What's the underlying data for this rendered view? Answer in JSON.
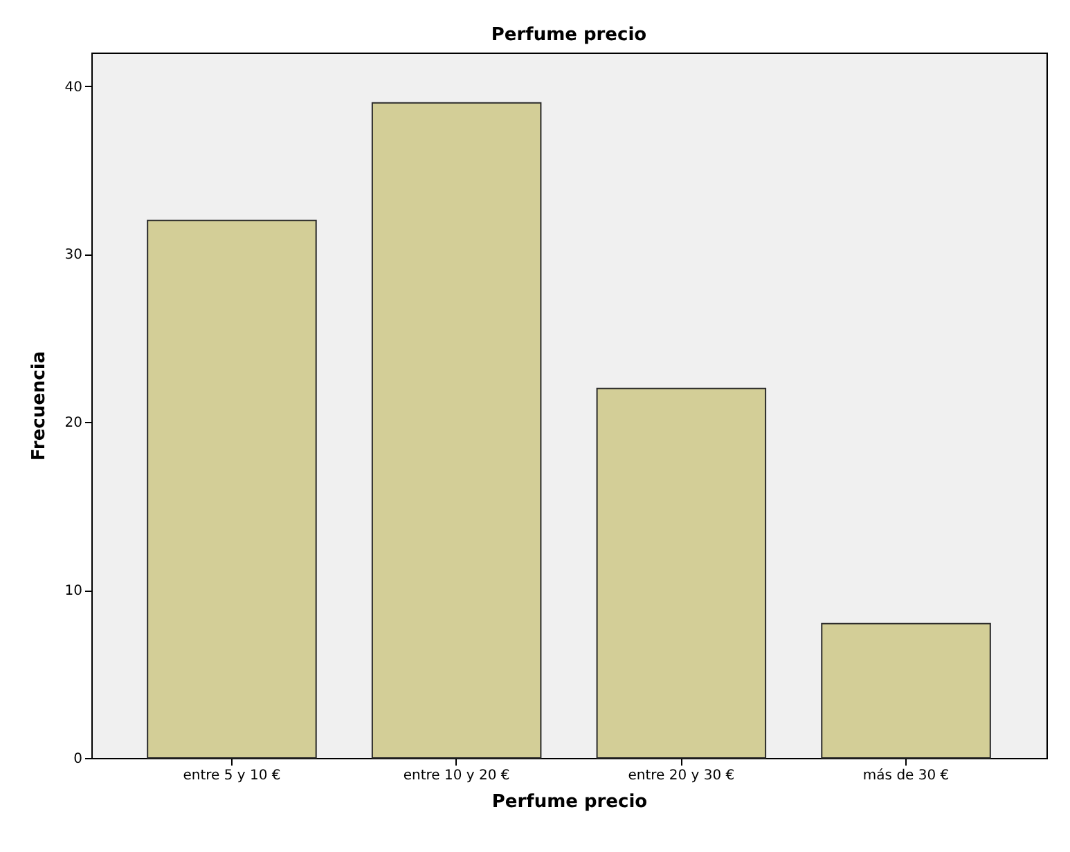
{
  "chart_data": {
    "type": "bar",
    "title": "Perfume precio",
    "xlabel": "Perfume precio",
    "ylabel": "Frecuencia",
    "categories": [
      "entre 5 y 10 €",
      "entre 10 y 20 €",
      "entre 20 y 30 €",
      "más de 30 €"
    ],
    "values": [
      32,
      39,
      22,
      8
    ],
    "color": "#d3ce97",
    "ylim": [
      0,
      42
    ],
    "yticks": [
      0,
      10,
      20,
      30,
      40
    ],
    "grid": false
  }
}
